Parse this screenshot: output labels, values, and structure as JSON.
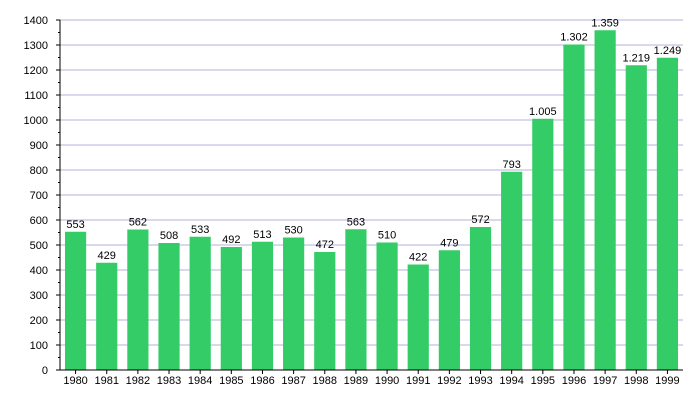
{
  "chart_data": {
    "type": "bar",
    "categories": [
      "1980",
      "1981",
      "1982",
      "1983",
      "1984",
      "1985",
      "1986",
      "1987",
      "1988",
      "1989",
      "1990",
      "1991",
      "1992",
      "1993",
      "1994",
      "1995",
      "1996",
      "1997",
      "1998",
      "1999"
    ],
    "values": [
      553,
      429,
      562,
      508,
      533,
      492,
      513,
      530,
      472,
      563,
      510,
      422,
      479,
      572,
      793,
      1005,
      1302,
      1359,
      1219,
      1249
    ],
    "data_labels": [
      "553",
      "429",
      "562",
      "508",
      "533",
      "492",
      "513",
      "530",
      "472",
      "563",
      "510",
      "422",
      "479",
      "572",
      "793",
      "1.005",
      "1.302",
      "1.359",
      "1.219",
      "1.249"
    ],
    "y_ticks": [
      0,
      100,
      200,
      300,
      400,
      500,
      600,
      700,
      800,
      900,
      1000,
      1100,
      1200,
      1300,
      1400
    ],
    "y_tick_labels": [
      "0",
      "100",
      "200",
      "300",
      "400",
      "500",
      "600",
      "700",
      "800",
      "900",
      "1000",
      "1100",
      "1200",
      "1300",
      "1400"
    ],
    "title": "",
    "xlabel": "",
    "ylabel": "",
    "ylim": [
      0,
      1400
    ],
    "grid": true,
    "legend": "none",
    "colors": {
      "bar": "#33cc66",
      "grid": "#b3b3dd",
      "axis": "#000000"
    }
  }
}
